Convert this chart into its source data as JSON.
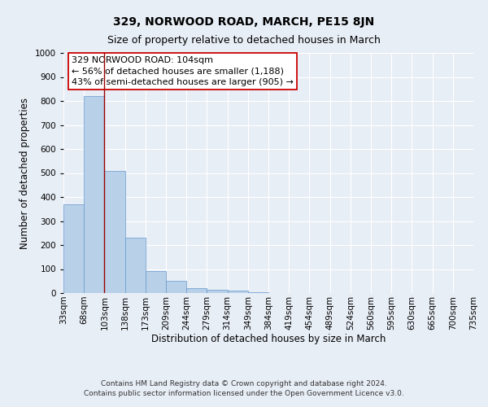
{
  "title": "329, NORWOOD ROAD, MARCH, PE15 8JN",
  "subtitle": "Size of property relative to detached houses in March",
  "xlabel": "Distribution of detached houses by size in March",
  "ylabel": "Number of detached properties",
  "bar_values": [
    370,
    820,
    510,
    232,
    92,
    52,
    20,
    15,
    10,
    5,
    0,
    0,
    0,
    0,
    0,
    0,
    0,
    0,
    0,
    0
  ],
  "bin_edges": [
    0,
    1,
    2,
    3,
    4,
    5,
    6,
    7,
    8,
    9,
    10,
    11,
    12,
    13,
    14,
    15,
    16,
    17,
    18,
    19,
    20
  ],
  "tick_labels": [
    "33sqm",
    "68sqm",
    "103sqm",
    "138sqm",
    "173sqm",
    "209sqm",
    "244sqm",
    "279sqm",
    "314sqm",
    "349sqm",
    "384sqm",
    "419sqm",
    "454sqm",
    "489sqm",
    "524sqm",
    "560sqm",
    "595sqm",
    "630sqm",
    "665sqm",
    "700sqm",
    "735sqm"
  ],
  "bar_color": "#b8d0e8",
  "bar_edge_color": "#6699cc",
  "vline_position": 2.0,
  "vline_color": "#990000",
  "annotation_text_line1": "329 NORWOOD ROAD: 104sqm",
  "annotation_text_line2": "← 56% of detached houses are smaller (1,188)",
  "annotation_text_line3": "43% of semi-detached houses are larger (905) →",
  "ylim": [
    0,
    1000
  ],
  "yticks": [
    0,
    100,
    200,
    300,
    400,
    500,
    600,
    700,
    800,
    900,
    1000
  ],
  "bg_color": "#e8eef6",
  "plot_bg_color": "#e8eef6",
  "footer_line1": "Contains HM Land Registry data © Crown copyright and database right 2024.",
  "footer_line2": "Contains public sector information licensed under the Open Government Licence v3.0.",
  "title_fontsize": 10,
  "subtitle_fontsize": 9,
  "axis_label_fontsize": 8.5,
  "tick_fontsize": 7.5,
  "annotation_fontsize": 8,
  "footer_fontsize": 6.5
}
